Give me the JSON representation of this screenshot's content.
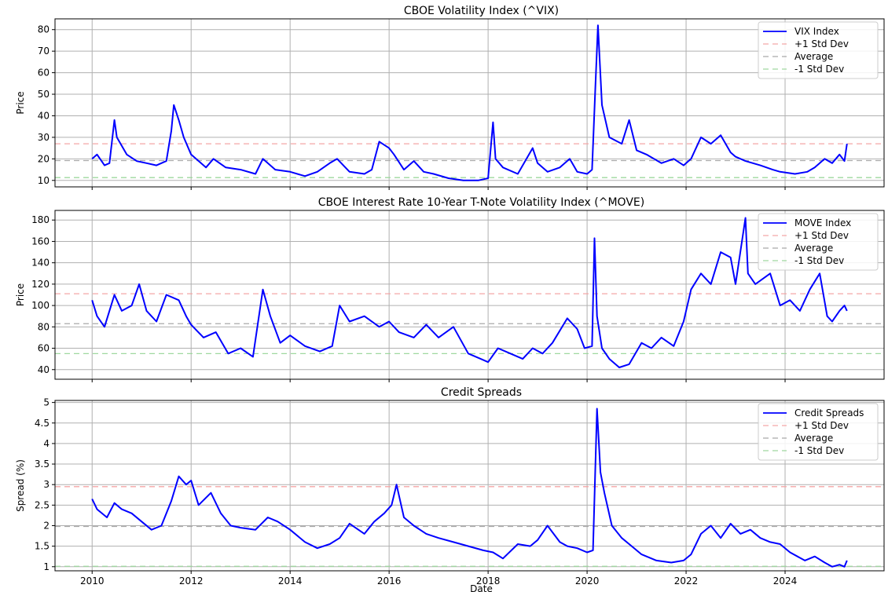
{
  "chart_data": [
    {
      "type": "line",
      "title": "CBOE Volatility Index (^VIX)",
      "xlabel": "",
      "ylabel": "Price",
      "ylim": [
        7,
        85
      ],
      "yticks": [
        10,
        20,
        30,
        40,
        50,
        60,
        70,
        80
      ],
      "legend_position": "top-right",
      "grid": true,
      "reference_lines": {
        "plus1": 27,
        "avg": 19.2,
        "minus1": 11.3
      },
      "legend": [
        "VIX Index",
        "+1 Std Dev",
        "Average",
        "-1 Std Dev"
      ],
      "series": [
        {
          "color": "#0000ff",
          "x": [
            2010.0,
            2010.1,
            2010.25,
            2010.35,
            2010.45,
            2010.5,
            2010.7,
            2010.9,
            2011.1,
            2011.3,
            2011.5,
            2011.6,
            2011.65,
            2011.75,
            2011.85,
            2012.0,
            2012.3,
            2012.45,
            2012.7,
            2013.0,
            2013.3,
            2013.45,
            2013.7,
            2014.0,
            2014.3,
            2014.55,
            2014.8,
            2014.95,
            2015.2,
            2015.5,
            2015.65,
            2015.8,
            2016.0,
            2016.1,
            2016.3,
            2016.5,
            2016.7,
            2016.9,
            2017.2,
            2017.5,
            2017.8,
            2018.0,
            2018.1,
            2018.15,
            2018.3,
            2018.6,
            2018.9,
            2019.0,
            2019.2,
            2019.45,
            2019.65,
            2019.8,
            2020.0,
            2020.1,
            2020.17,
            2020.22,
            2020.3,
            2020.45,
            2020.7,
            2020.85,
            2021.0,
            2021.2,
            2021.5,
            2021.75,
            2021.95,
            2022.1,
            2022.3,
            2022.5,
            2022.7,
            2022.9,
            2023.0,
            2023.2,
            2023.5,
            2023.75,
            2023.9,
            2024.2,
            2024.45,
            2024.6,
            2024.8,
            2024.95,
            2025.1,
            2025.2,
            2025.25
          ],
          "values": [
            20,
            22,
            17,
            18,
            38,
            30,
            22,
            19,
            18,
            17,
            19,
            33,
            45,
            38,
            30,
            22,
            16,
            20,
            16,
            15,
            13,
            20,
            15,
            14,
            12,
            14,
            18,
            20,
            14,
            13,
            15,
            28,
            25,
            22,
            15,
            19,
            14,
            13,
            11,
            10,
            10,
            11,
            37,
            20,
            16,
            13,
            25,
            18,
            14,
            16,
            20,
            14,
            13,
            15,
            55,
            82,
            45,
            30,
            27,
            38,
            24,
            22,
            18,
            20,
            17,
            20,
            30,
            27,
            31,
            23,
            21,
            19,
            17,
            15,
            14,
            13,
            14,
            16,
            20,
            18,
            22,
            19,
            27
          ]
        }
      ]
    },
    {
      "type": "line",
      "title": "CBOE Interest Rate 10-Year T-Note Volatility Index (^MOVE)",
      "xlabel": "",
      "ylabel": "Price",
      "ylim": [
        31,
        189
      ],
      "yticks": [
        40,
        60,
        80,
        100,
        120,
        140,
        160,
        180
      ],
      "legend_position": "top-right",
      "grid": true,
      "reference_lines": {
        "plus1": 111,
        "avg": 83,
        "minus1": 55
      },
      "legend": [
        "MOVE Index",
        "+1 Std Dev",
        "Average",
        "-1 Std Dev"
      ],
      "series": [
        {
          "color": "#0000ff",
          "x": [
            2010.0,
            2010.1,
            2010.25,
            2010.45,
            2010.6,
            2010.8,
            2010.95,
            2011.1,
            2011.3,
            2011.5,
            2011.75,
            2011.9,
            2012.0,
            2012.25,
            2012.5,
            2012.75,
            2013.0,
            2013.25,
            2013.45,
            2013.6,
            2013.8,
            2014.0,
            2014.3,
            2014.6,
            2014.85,
            2015.0,
            2015.2,
            2015.5,
            2015.8,
            2016.0,
            2016.2,
            2016.5,
            2016.75,
            2017.0,
            2017.3,
            2017.6,
            2017.85,
            2018.0,
            2018.2,
            2018.45,
            2018.7,
            2018.9,
            2019.1,
            2019.3,
            2019.6,
            2019.8,
            2019.95,
            2020.1,
            2020.15,
            2020.2,
            2020.3,
            2020.45,
            2020.65,
            2020.85,
            2021.1,
            2021.3,
            2021.5,
            2021.75,
            2021.95,
            2022.1,
            2022.3,
            2022.5,
            2022.7,
            2022.9,
            2023.0,
            2023.2,
            2023.25,
            2023.4,
            2023.7,
            2023.9,
            2024.1,
            2024.3,
            2024.5,
            2024.7,
            2024.85,
            2024.95,
            2025.1,
            2025.2,
            2025.25
          ],
          "values": [
            105,
            90,
            80,
            110,
            95,
            100,
            120,
            95,
            85,
            110,
            105,
            90,
            82,
            70,
            75,
            55,
            60,
            52,
            115,
            90,
            65,
            72,
            62,
            57,
            62,
            100,
            85,
            90,
            80,
            85,
            75,
            70,
            82,
            70,
            80,
            55,
            50,
            47,
            60,
            55,
            50,
            60,
            55,
            65,
            88,
            78,
            60,
            62,
            163,
            90,
            60,
            50,
            42,
            45,
            65,
            60,
            70,
            62,
            85,
            115,
            130,
            120,
            150,
            145,
            120,
            182,
            130,
            120,
            130,
            100,
            105,
            95,
            115,
            130,
            90,
            85,
            95,
            100,
            95
          ]
        }
      ]
    },
    {
      "type": "line",
      "title": "Credit Spreads",
      "xlabel": "Date",
      "ylabel": "Spread (%)",
      "ylim": [
        0.9,
        5.05
      ],
      "yticks": [
        1.0,
        1.5,
        2.0,
        2.5,
        3.0,
        3.5,
        4.0,
        4.5,
        5.0
      ],
      "legend_position": "top-right",
      "grid": true,
      "reference_lines": {
        "plus1": 2.95,
        "avg": 1.98,
        "minus1": 1.01
      },
      "legend": [
        "Credit Spreads",
        "+1 Std Dev",
        "Average",
        "-1 Std Dev"
      ],
      "series": [
        {
          "color": "#0000ff",
          "x": [
            2010.0,
            2010.1,
            2010.3,
            2010.45,
            2010.6,
            2010.8,
            2011.0,
            2011.2,
            2011.4,
            2011.6,
            2011.75,
            2011.9,
            2012.0,
            2012.15,
            2012.4,
            2012.6,
            2012.8,
            2013.0,
            2013.3,
            2013.55,
            2013.75,
            2014.0,
            2014.3,
            2014.55,
            2014.8,
            2015.0,
            2015.2,
            2015.5,
            2015.7,
            2015.9,
            2016.05,
            2016.15,
            2016.3,
            2016.5,
            2016.75,
            2017.0,
            2017.3,
            2017.6,
            2017.9,
            2018.1,
            2018.3,
            2018.6,
            2018.85,
            2019.0,
            2019.2,
            2019.45,
            2019.6,
            2019.8,
            2020.0,
            2020.12,
            2020.2,
            2020.27,
            2020.35,
            2020.5,
            2020.7,
            2020.9,
            2021.1,
            2021.4,
            2021.7,
            2021.95,
            2022.1,
            2022.3,
            2022.5,
            2022.7,
            2022.9,
            2023.1,
            2023.3,
            2023.5,
            2023.7,
            2023.9,
            2024.1,
            2024.4,
            2024.6,
            2024.8,
            2024.95,
            2025.1,
            2025.2,
            2025.25
          ],
          "values": [
            2.65,
            2.4,
            2.2,
            2.55,
            2.4,
            2.3,
            2.1,
            1.9,
            2.0,
            2.6,
            3.2,
            3.0,
            3.1,
            2.5,
            2.8,
            2.3,
            2.0,
            1.95,
            1.9,
            2.2,
            2.1,
            1.9,
            1.6,
            1.45,
            1.55,
            1.7,
            2.05,
            1.8,
            2.1,
            2.3,
            2.5,
            3.0,
            2.2,
            2.0,
            1.8,
            1.7,
            1.6,
            1.5,
            1.4,
            1.35,
            1.2,
            1.55,
            1.5,
            1.65,
            2.0,
            1.6,
            1.5,
            1.45,
            1.35,
            1.4,
            4.85,
            3.3,
            2.8,
            2.0,
            1.7,
            1.5,
            1.3,
            1.15,
            1.1,
            1.15,
            1.3,
            1.8,
            2.0,
            1.7,
            2.05,
            1.8,
            1.9,
            1.7,
            1.6,
            1.55,
            1.35,
            1.15,
            1.25,
            1.1,
            1.0,
            1.05,
            1.0,
            1.15
          ]
        }
      ]
    }
  ],
  "xaxis": {
    "xlim": [
      2009.25,
      2026.0
    ],
    "ticks": [
      "2010",
      "2012",
      "2014",
      "2016",
      "2018",
      "2020",
      "2022",
      "2024"
    ]
  },
  "colors": {
    "series": "#0000ff",
    "plus1": "#f4a6a6",
    "avg": "#a9a9a9",
    "minus1": "#9fd89f",
    "grid": "#b0b0b0"
  }
}
